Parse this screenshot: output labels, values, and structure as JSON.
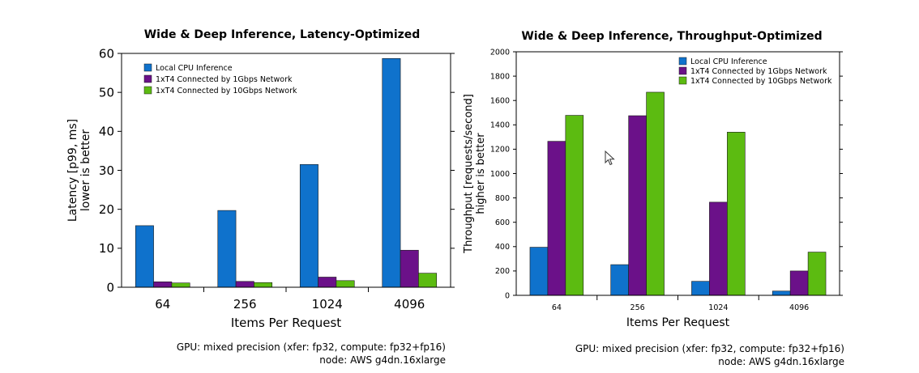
{
  "colors": {
    "local_cpu": "#0f72cc",
    "gbps1": "#6b1189",
    "gbps10": "#5cbb11",
    "axis": "#000000"
  },
  "chart_data": [
    {
      "type": "bar",
      "title": "Wide & Deep Inference, Latency-Optimized",
      "xlabel": "Items Per Request",
      "ylabel": "Latency [p99, ms]",
      "ylabel2": "lower is better",
      "categories": [
        "64",
        "256",
        "1024",
        "4096"
      ],
      "ylim": [
        0,
        60
      ],
      "yticks": [
        "0",
        "10",
        "20",
        "30",
        "40",
        "50",
        "60"
      ],
      "legend_position": "top-left",
      "grid": false,
      "series": [
        {
          "name": "Local CPU Inference",
          "values": [
            15.8,
            19.7,
            31.5,
            58.7
          ]
        },
        {
          "name": "1xT4 Connected by 1Gbps Network",
          "values": [
            1.4,
            1.5,
            2.6,
            9.5
          ]
        },
        {
          "name": "1xT4 Connected by 10Gbps Network",
          "values": [
            1.1,
            1.2,
            1.7,
            3.6
          ]
        }
      ],
      "footnote": [
        "GPU: mixed precision (xfer: fp32, compute: fp32+fp16)",
        "node: AWS g4dn.16xlarge"
      ]
    },
    {
      "type": "bar",
      "title": "Wide & Deep Inference, Throughput-Optimized",
      "xlabel": "Items Per Request",
      "ylabel": "Throughput [requests/second]",
      "ylabel2": "higher is better",
      "categories": [
        "64",
        "256",
        "1024",
        "4096"
      ],
      "ylim": [
        0,
        2000
      ],
      "yticks": [
        "0",
        "200",
        "400",
        "600",
        "800",
        "1000",
        "1200",
        "1400",
        "1600",
        "1800",
        "2000"
      ],
      "legend_position": "top-right",
      "grid": false,
      "series": [
        {
          "name": "Local CPU Inference",
          "values": [
            395,
            252,
            115,
            35
          ]
        },
        {
          "name": "1xT4 Connected by 1Gbps Network",
          "values": [
            1265,
            1475,
            765,
            200
          ]
        },
        {
          "name": "1xT4 Connected by 10Gbps Network",
          "values": [
            1478,
            1668,
            1340,
            355
          ]
        }
      ],
      "footnote": [
        "GPU: mixed precision (xfer: fp32, compute: fp32+fp16)",
        "node: AWS g4dn.16xlarge"
      ]
    }
  ]
}
